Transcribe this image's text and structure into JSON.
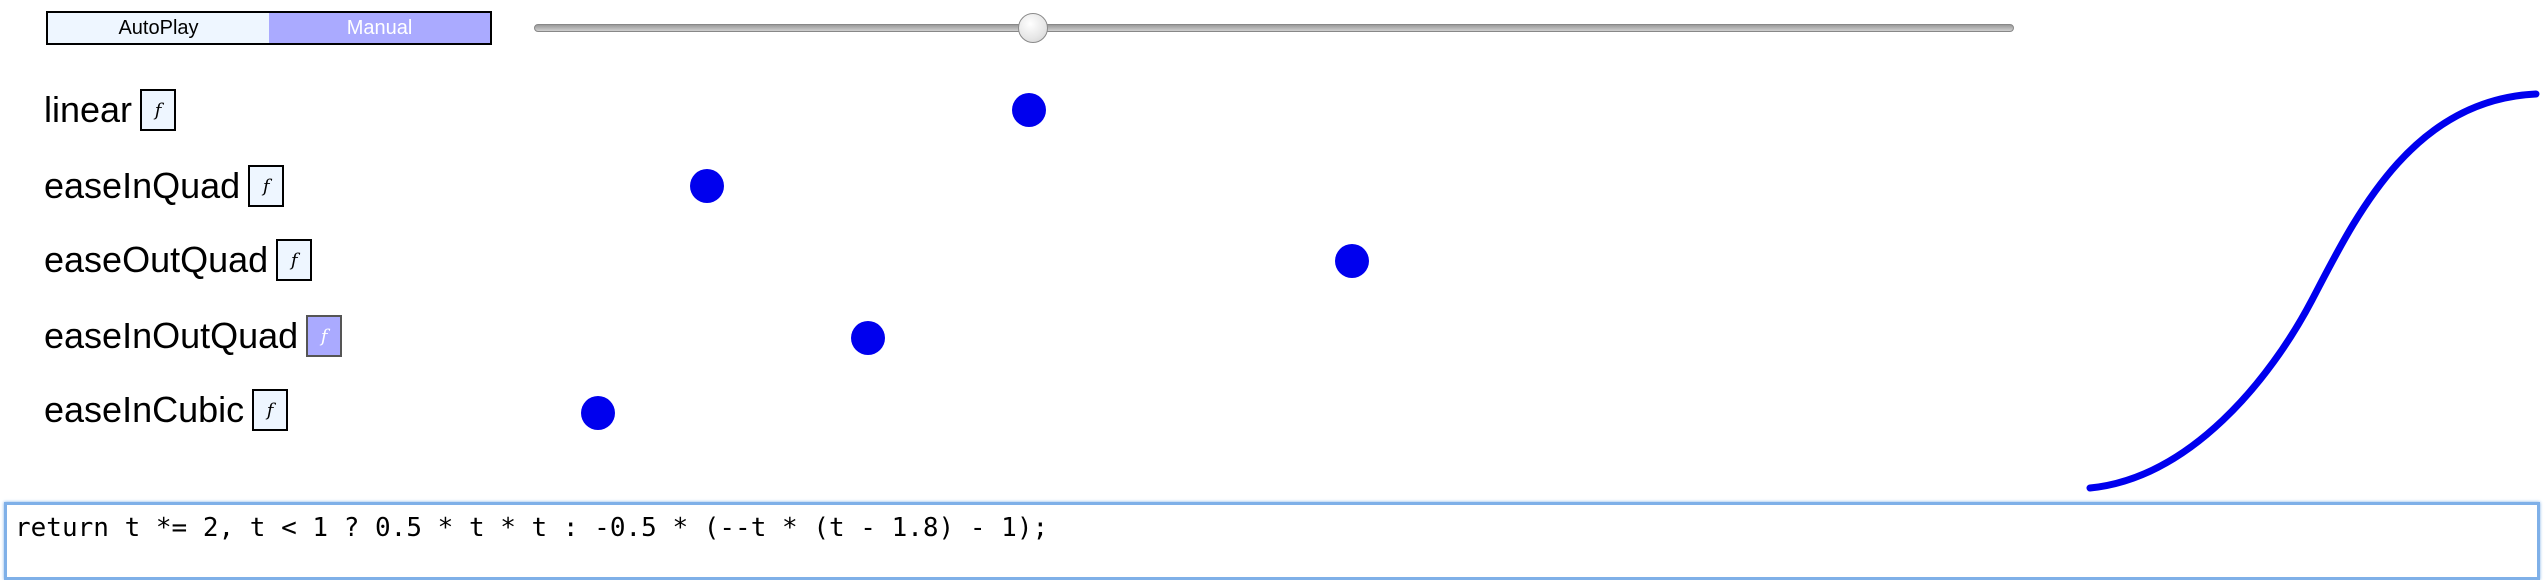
{
  "mode_toggle": {
    "options": [
      {
        "label": "AutoPlay",
        "active": false
      },
      {
        "label": "Manual",
        "active": true
      }
    ]
  },
  "slider": {
    "value": 0.34
  },
  "eases": [
    {
      "name": "linear",
      "fn_label": "f",
      "selected": false,
      "progress": 0.34
    },
    {
      "name": "easeInQuad",
      "fn_label": "f",
      "selected": false,
      "progress": 0.12
    },
    {
      "name": "easeOutQuad",
      "fn_label": "f",
      "selected": false,
      "progress": 0.56
    },
    {
      "name": "easeInOutQuad",
      "fn_label": "f",
      "selected": true,
      "progress": 0.23
    },
    {
      "name": "easeInCubic",
      "fn_label": "f",
      "selected": false,
      "progress": 0.04
    }
  ],
  "editor": {
    "code": "return t *= 2, t < 1 ? 0.5 * t * t : -0.5 * (--t * (t - 1.8) - 1);"
  },
  "colors": {
    "accent": "#aaaaff",
    "dot": "#0000ee",
    "curve": "#0000ee",
    "editor_focus": "#7fb0e8"
  }
}
